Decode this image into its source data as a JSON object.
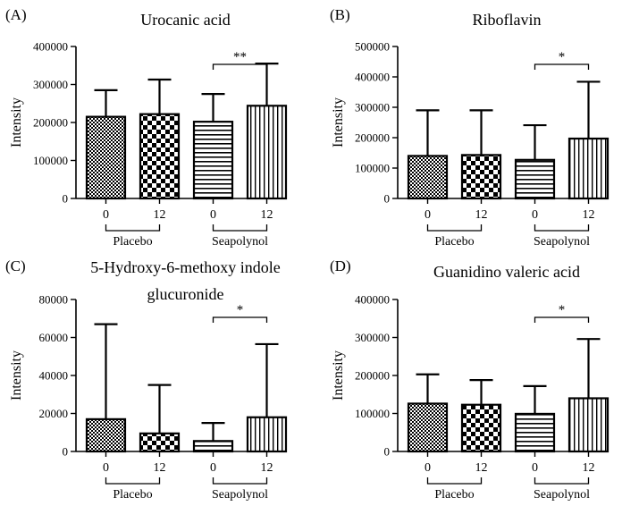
{
  "figure": {
    "group_labels": [
      "Placebo",
      "Seapolynol"
    ]
  },
  "chart_data": [
    {
      "type": "bar",
      "panel_label": "(A)",
      "title": "Urocanic acid",
      "title_lines": [
        "Urocanic acid"
      ],
      "ylabel": "Intensity",
      "ylim": [
        0,
        400000
      ],
      "yticks": [
        "0",
        "100000",
        "200000",
        "300000",
        "400000"
      ],
      "categories": [
        "0",
        "12",
        "0",
        "12"
      ],
      "groups": [
        "Placebo",
        "Seapolynol"
      ],
      "values": [
        215000,
        222000,
        202000,
        244000
      ],
      "error_upper": [
        285000,
        313000,
        275000,
        355000
      ],
      "patterns": [
        "pat-grid",
        "pat-check",
        "pat-hline",
        "pat-vline"
      ],
      "significance": {
        "label": "**",
        "between": [
          2,
          3
        ]
      }
    },
    {
      "type": "bar",
      "panel_label": "(B)",
      "title": "Riboflavin",
      "title_lines": [
        "Riboflavin"
      ],
      "ylabel": "Intensity",
      "ylim": [
        0,
        500000
      ],
      "yticks": [
        "0",
        "100000",
        "200000",
        "300000",
        "400000",
        "500000"
      ],
      "categories": [
        "0",
        "12",
        "0",
        "12"
      ],
      "groups": [
        "Placebo",
        "Seapolynol"
      ],
      "values": [
        140000,
        143000,
        127000,
        197000
      ],
      "error_upper": [
        290000,
        290000,
        241000,
        384000
      ],
      "patterns": [
        "pat-grid",
        "pat-check",
        "pat-hline",
        "pat-vline"
      ],
      "significance": {
        "label": "*",
        "between": [
          2,
          3
        ]
      }
    },
    {
      "type": "bar",
      "panel_label": "(C)",
      "title": "5-Hydroxy-6-methoxy indole glucuronide",
      "title_lines": [
        "5-Hydroxy-6-methoxy indole",
        "glucuronide"
      ],
      "ylabel": "Intensity",
      "ylim": [
        0,
        80000
      ],
      "yticks": [
        "0",
        "20000",
        "40000",
        "60000",
        "80000"
      ],
      "categories": [
        "0",
        "12",
        "0",
        "12"
      ],
      "groups": [
        "Placebo",
        "Seapolynol"
      ],
      "values": [
        17000,
        9500,
        5500,
        18000
      ],
      "error_upper": [
        67000,
        35000,
        15000,
        56500
      ],
      "patterns": [
        "pat-grid",
        "pat-check",
        "pat-hline",
        "pat-vline"
      ],
      "significance": {
        "label": "*",
        "between": [
          2,
          3
        ]
      }
    },
    {
      "type": "bar",
      "panel_label": "(D)",
      "title": "Guanidino valeric acid",
      "title_lines": [
        "Guanidino valeric acid"
      ],
      "ylabel": "Intensity",
      "ylim": [
        0,
        400000
      ],
      "yticks": [
        "0",
        "100000",
        "200000",
        "300000",
        "400000"
      ],
      "categories": [
        "0",
        "12",
        "0",
        "12"
      ],
      "groups": [
        "Placebo",
        "Seapolynol"
      ],
      "values": [
        126000,
        123000,
        99000,
        140000
      ],
      "error_upper": [
        203000,
        188000,
        172000,
        296000
      ],
      "patterns": [
        "pat-grid",
        "pat-check",
        "pat-hline",
        "pat-vline"
      ],
      "significance": {
        "label": "*",
        "between": [
          2,
          3
        ]
      }
    }
  ]
}
